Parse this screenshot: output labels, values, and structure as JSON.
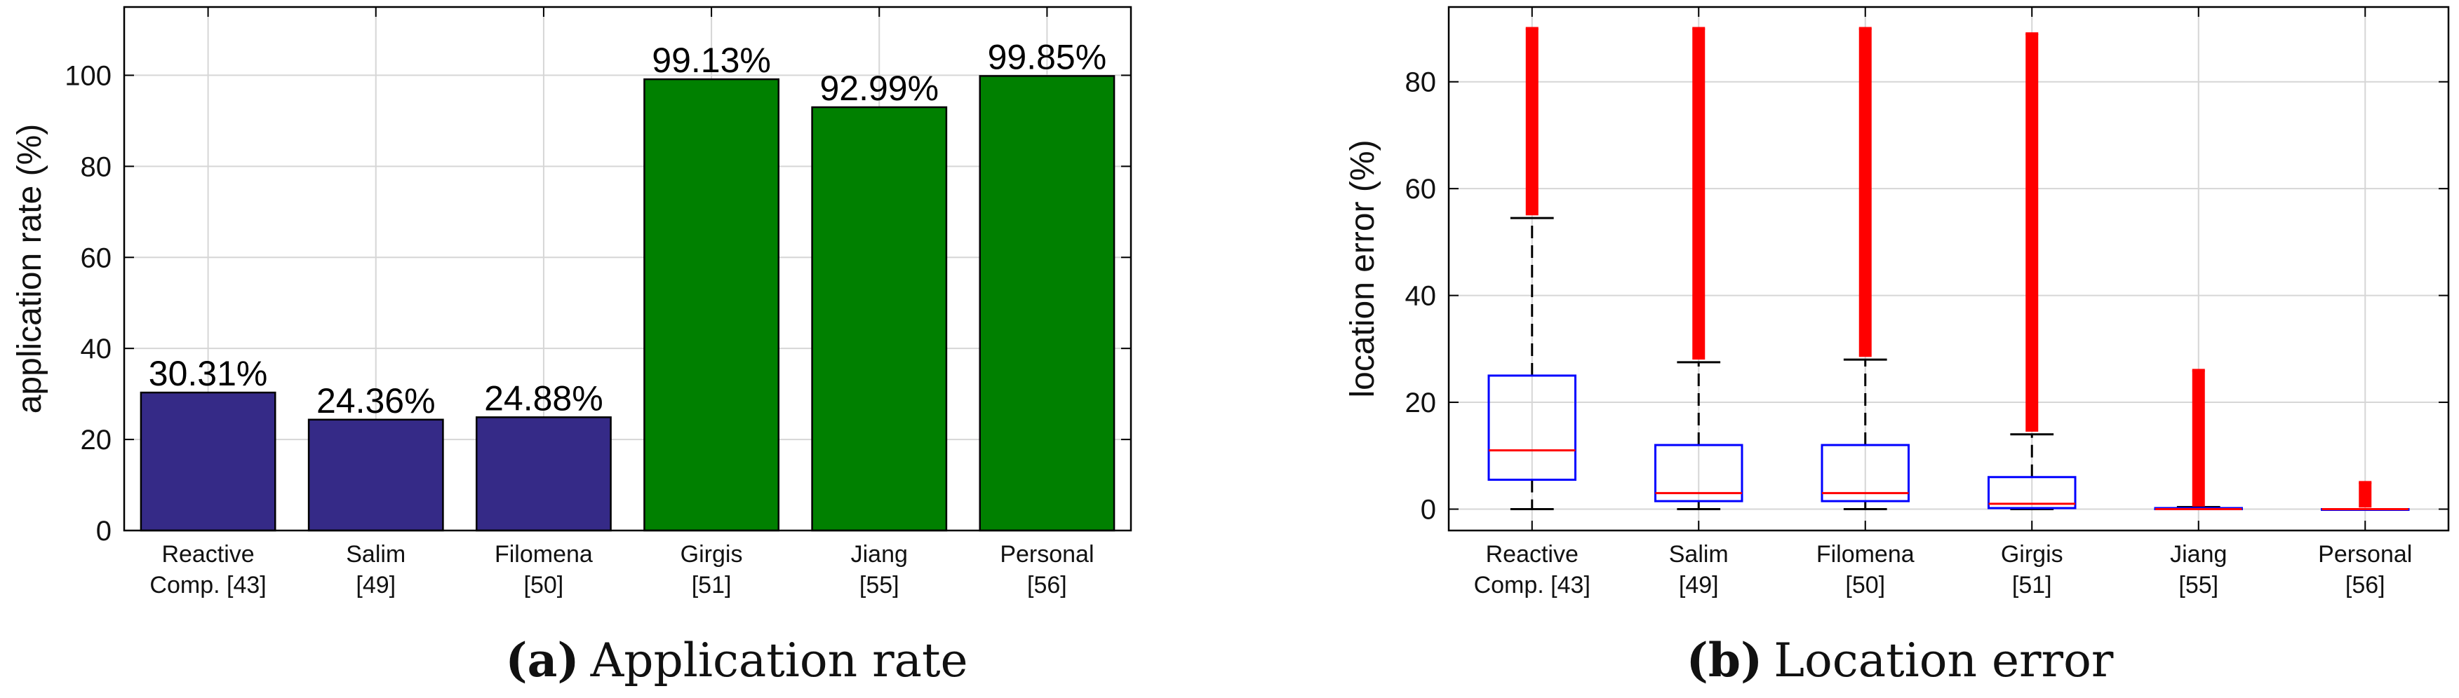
{
  "panels": {
    "a": {
      "caption_tag": "(a)",
      "caption_text": "Application rate"
    },
    "b": {
      "caption_tag": "(b)",
      "caption_text": "Location error"
    }
  },
  "chart_data": [
    {
      "type": "bar",
      "categories": [
        [
          "Reactive",
          "Comp. [43]"
        ],
        [
          "Salim",
          "[49]"
        ],
        [
          "Filomena",
          "[50]"
        ],
        [
          "Girgis",
          "[51]"
        ],
        [
          "Jiang",
          "[55]"
        ],
        [
          "Personal",
          "[56]"
        ]
      ],
      "values": [
        30.31,
        24.36,
        24.88,
        99.13,
        92.99,
        99.85
      ],
      "data_labels": [
        "30.31%",
        "24.36%",
        "24.88%",
        "99.13%",
        "92.99%",
        "99.85%"
      ],
      "bar_colors": [
        "#352a87",
        "#352a87",
        "#352a87",
        "#008000",
        "#008000",
        "#008000"
      ],
      "xlabel": "",
      "ylabel": "application rate (%)",
      "ylim": [
        0,
        115
      ],
      "yticks": [
        0,
        20,
        40,
        60,
        80,
        100
      ],
      "grid": true
    },
    {
      "type": "box",
      "categories": [
        [
          "Reactive",
          "Comp. [43]"
        ],
        [
          "Salim",
          "[49]"
        ],
        [
          "Filomena",
          "[50]"
        ],
        [
          "Girgis",
          "[51]"
        ],
        [
          "Jiang",
          "[55]"
        ],
        [
          "Personal",
          "[56]"
        ]
      ],
      "boxes": [
        {
          "whisker_low": 0,
          "q1": 5.5,
          "median": 11,
          "q3": 25,
          "whisker_high": 54.5,
          "outliers_low": 55,
          "outliers_high": 90
        },
        {
          "whisker_low": 0,
          "q1": 1.5,
          "median": 3,
          "q3": 12,
          "whisker_high": 27.5,
          "outliers_low": 28,
          "outliers_high": 90
        },
        {
          "whisker_low": 0,
          "q1": 1.5,
          "median": 3,
          "q3": 12,
          "whisker_high": 28,
          "outliers_low": 28.5,
          "outliers_high": 90
        },
        {
          "whisker_low": 0,
          "q1": 0.2,
          "median": 1,
          "q3": 6,
          "whisker_high": 14,
          "outliers_low": 14.5,
          "outliers_high": 89
        },
        {
          "whisker_low": 0,
          "q1": 0,
          "median": 0,
          "q3": 0.2,
          "whisker_high": 0.4,
          "outliers_low": 0.5,
          "outliers_high": 26
        },
        {
          "whisker_low": 0,
          "q1": 0,
          "median": 0,
          "q3": 0,
          "whisker_high": 0,
          "outliers_low": 0.3,
          "outliers_high": 5
        }
      ],
      "box_color": "#0000ff",
      "median_color": "#ff0000",
      "outlier_color": "#ff0000",
      "xlabel": "",
      "ylabel": "location error (%)",
      "ylim": [
        -4,
        94
      ],
      "yticks": [
        0,
        20,
        40,
        60,
        80
      ],
      "grid": true
    }
  ]
}
